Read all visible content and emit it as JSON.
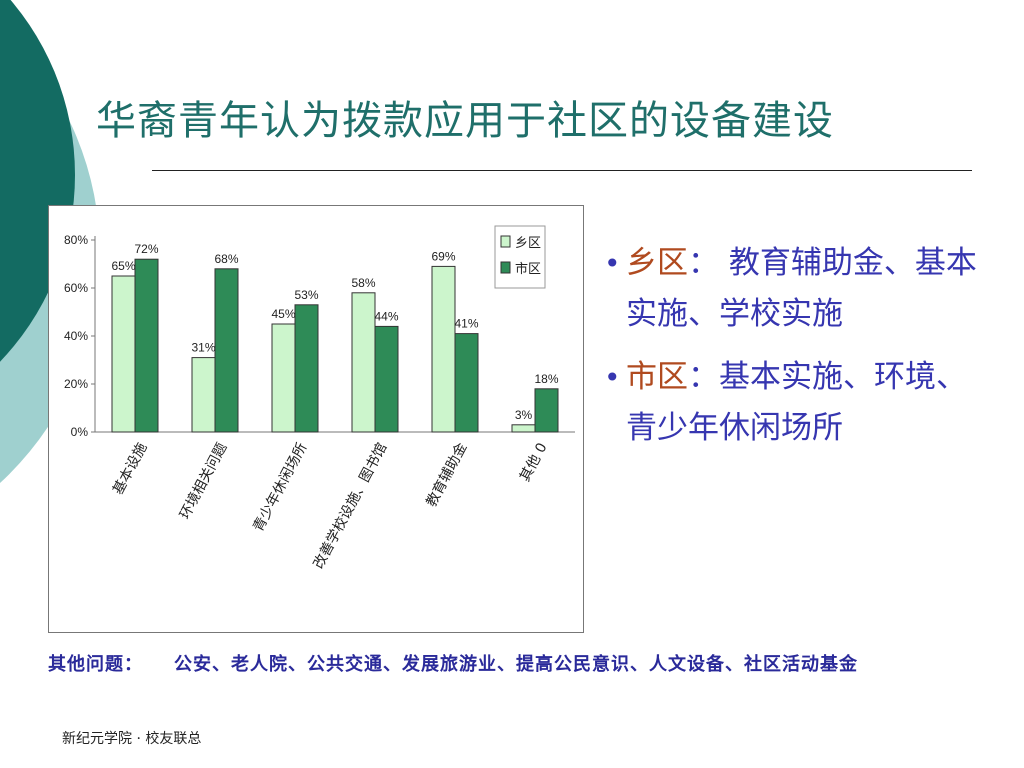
{
  "slide": {
    "title": "华裔青年认为拨款应用于社区的设备建设",
    "footer": "新纪元学院 · 校友联总"
  },
  "colors": {
    "title": "#1f6f6a",
    "deco_dark": "#136b62",
    "deco_light": "#9fd0cf",
    "series_rural": "#ccf5cc",
    "series_urban": "#2e8b57",
    "bullet_text": "#3636b0",
    "bullet_key": "#b04a1f",
    "note_text": "#2a2a9a"
  },
  "chart_data": {
    "type": "bar",
    "categories": [
      "基本设施",
      "环境相关问题",
      "青少年休闲场所",
      "改善学校设施、图书馆",
      "教育辅助金",
      "其他 0"
    ],
    "series": [
      {
        "name": "乡区",
        "values": [
          65,
          31,
          45,
          58,
          69,
          3
        ]
      },
      {
        "name": "市区",
        "values": [
          72,
          68,
          53,
          44,
          41,
          18
        ]
      }
    ],
    "data_labels": [
      [
        "65%",
        "31%",
        "45%",
        "58%",
        "69%",
        "3%"
      ],
      [
        "72%",
        "68%",
        "53%",
        "44%",
        "41%",
        "18%"
      ]
    ],
    "y_ticks": [
      "0%",
      "20%",
      "40%",
      "60%",
      "80%"
    ],
    "ylim": [
      0,
      80
    ],
    "title": "",
    "xlabel": "",
    "ylabel": "",
    "grid": false,
    "legend_position": "top-right"
  },
  "bullets": [
    {
      "key": "乡区",
      "sep": "：",
      "text": "  教育辅助金、基本实施、学校实施"
    },
    {
      "key": "市区",
      "sep": "：",
      "text": "基本实施、环境、青少年休闲场所"
    }
  ],
  "bullet_marker": "•",
  "note": {
    "label": "其他问题：",
    "items": "公安、老人院、公共交通、发展旅游业、提高公民意识、人文设备、社区活动基金"
  }
}
